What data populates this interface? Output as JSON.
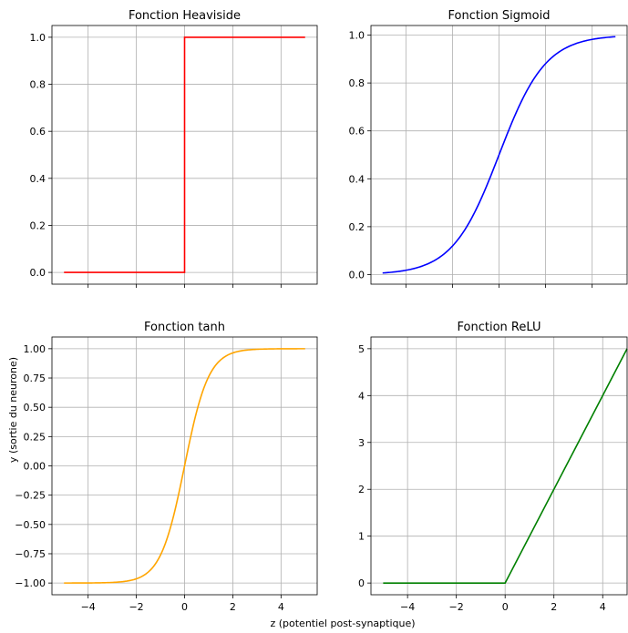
{
  "figure": {
    "xlabel": "z (potentiel post-synaptique)",
    "ylabel": "y (sortie du neurone)"
  },
  "chart_data": [
    {
      "type": "line",
      "title": "Fonction Heaviside",
      "xlim": [
        -5.5,
        5.5
      ],
      "ylim": [
        -0.05,
        1.05
      ],
      "grid": true,
      "xticks": [
        -4,
        -2,
        0,
        2,
        4
      ],
      "show_xtick_labels": false,
      "yticks": [
        0.0,
        0.2,
        0.4,
        0.6,
        0.8,
        1.0
      ],
      "ytick_labels": [
        "0.0",
        "0.2",
        "0.4",
        "0.6",
        "0.8",
        "1.0"
      ],
      "color": "#ff0000",
      "series": [
        {
          "function": "heaviside",
          "x": [
            -5,
            0,
            0,
            5
          ],
          "y": [
            0,
            0,
            1,
            1
          ]
        }
      ]
    },
    {
      "type": "line",
      "title": "Fonction Sigmoid",
      "xlim": [
        -5.5,
        5.5
      ],
      "ylim": [
        -0.04,
        1.04
      ],
      "grid": true,
      "xticks": [
        -4,
        -2,
        0,
        2,
        4
      ],
      "show_xtick_labels": false,
      "yticks": [
        0.0,
        0.2,
        0.4,
        0.6,
        0.8,
        1.0
      ],
      "ytick_labels": [
        "0.0",
        "0.2",
        "0.4",
        "0.6",
        "0.8",
        "1.0"
      ],
      "color": "#0000ff",
      "series": [
        {
          "function": "sigmoid",
          "x_range": [
            -5,
            5
          ]
        }
      ]
    },
    {
      "type": "line",
      "title": "Fonction tanh",
      "xlim": [
        -5.5,
        5.5
      ],
      "ylim": [
        -1.1,
        1.1
      ],
      "grid": true,
      "xticks": [
        -4,
        -2,
        0,
        2,
        4
      ],
      "show_xtick_labels": true,
      "xtick_labels": [
        "−4",
        "−2",
        "0",
        "2",
        "4"
      ],
      "yticks": [
        -1.0,
        -0.75,
        -0.5,
        -0.25,
        0.0,
        0.25,
        0.5,
        0.75,
        1.0
      ],
      "ytick_labels": [
        "−1.00",
        "−0.75",
        "−0.50",
        "−0.25",
        "0.00",
        "0.25",
        "0.50",
        "0.75",
        "1.00"
      ],
      "color": "#ffa500",
      "series": [
        {
          "function": "tanh",
          "x_range": [
            -5,
            5
          ]
        }
      ]
    },
    {
      "type": "line",
      "title": "Fonction ReLU",
      "xlim": [
        -5.5,
        5.0
      ],
      "ylim": [
        -0.25,
        5.25
      ],
      "grid": true,
      "xticks": [
        -4,
        -2,
        0,
        2,
        4
      ],
      "show_xtick_labels": true,
      "xtick_labels": [
        "−4",
        "−2",
        "0",
        "2",
        "4"
      ],
      "yticks": [
        0,
        1,
        2,
        3,
        4,
        5
      ],
      "ytick_labels": [
        "0",
        "1",
        "2",
        "3",
        "4",
        "5"
      ],
      "color": "#008000",
      "series": [
        {
          "function": "relu",
          "x": [
            -5,
            0,
            5
          ],
          "y": [
            0,
            0,
            5
          ]
        }
      ]
    }
  ]
}
